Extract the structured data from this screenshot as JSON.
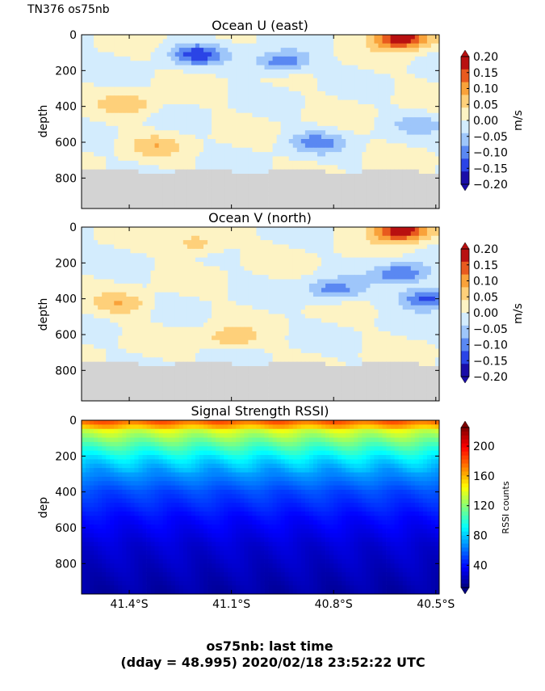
{
  "figure": {
    "corner_label": "TN376 os75nb",
    "footer_line1": "os75nb: last time",
    "footer_line2": "(dday = 48.995) 2020/02/18 23:52:22 UTC",
    "shared_x_tick_labels": [
      "41.4°S",
      "41.1°S",
      "40.8°S",
      "40.5°S"
    ]
  },
  "chart_data": [
    {
      "type": "heatmap",
      "title": "Ocean U (east)",
      "ylabel": "depth",
      "colorbar_label": "m/s",
      "x_lim": [
        41.54,
        40.49
      ],
      "x_ticks": [
        41.4,
        41.1,
        40.8,
        40.5
      ],
      "x_tick_labels": [
        "41.4°S",
        "41.1°S",
        "40.8°S",
        "40.5°S"
      ],
      "y_lim": [
        970,
        0
      ],
      "y_ticks": [
        0,
        200,
        400,
        600,
        800
      ],
      "y_tick_labels": [
        "0",
        "200",
        "400",
        "600",
        "800"
      ],
      "value_range": [
        -0.2,
        0.2
      ],
      "colorbar_ticks": [
        0.2,
        0.15,
        0.1,
        0.05,
        0.0,
        -0.05,
        -0.1,
        -0.15,
        -0.2
      ],
      "colorbar_tick_labels": [
        "0.20",
        "0.15",
        "0.10",
        "0.05",
        "0.00",
        "−0.05",
        "−0.10",
        "−0.15",
        "−0.20"
      ],
      "no_data_below_depth": 760,
      "features": [
        {
          "lat": 40.6,
          "depth": 20,
          "value": 0.2
        },
        {
          "lat": 41.2,
          "depth": 110,
          "value": -0.13
        },
        {
          "lat": 40.95,
          "depth": 150,
          "value": -0.12
        },
        {
          "lat": 41.4,
          "depth": 390,
          "value": 0.07
        },
        {
          "lat": 41.32,
          "depth": 620,
          "value": 0.06
        },
        {
          "lat": 40.85,
          "depth": 600,
          "value": -0.09
        },
        {
          "lat": 40.55,
          "depth": 500,
          "value": -0.05
        }
      ]
    },
    {
      "type": "heatmap",
      "title": "Ocean V (north)",
      "ylabel": "depth",
      "colorbar_label": "m/s",
      "x_lim": [
        41.54,
        40.49
      ],
      "x_ticks": [
        41.4,
        41.1,
        40.8,
        40.5
      ],
      "x_tick_labels": [
        "41.4°S",
        "41.1°S",
        "40.8°S",
        "40.5°S"
      ],
      "y_lim": [
        970,
        0
      ],
      "y_ticks": [
        0,
        200,
        400,
        600,
        800
      ],
      "y_tick_labels": [
        "0",
        "200",
        "400",
        "600",
        "800"
      ],
      "value_range": [
        -0.2,
        0.2
      ],
      "colorbar_ticks": [
        0.2,
        0.15,
        0.1,
        0.05,
        0.0,
        -0.05,
        -0.1,
        -0.15,
        -0.2
      ],
      "colorbar_tick_labels": [
        "0.20",
        "0.15",
        "0.10",
        "0.05",
        "0.00",
        "−0.05",
        "−0.10",
        "−0.15",
        "−0.20"
      ],
      "no_data_below_depth": 760,
      "features": [
        {
          "lat": 40.6,
          "depth": 20,
          "value": 0.2
        },
        {
          "lat": 41.2,
          "depth": 90,
          "value": 0.07
        },
        {
          "lat": 41.42,
          "depth": 430,
          "value": 0.07
        },
        {
          "lat": 41.1,
          "depth": 620,
          "value": 0.07
        },
        {
          "lat": 40.8,
          "depth": 350,
          "value": -0.1
        },
        {
          "lat": 40.6,
          "depth": 260,
          "value": -0.12
        },
        {
          "lat": 40.52,
          "depth": 400,
          "value": -0.15
        }
      ]
    },
    {
      "type": "heatmap",
      "title": "Signal Strength RSSI)",
      "ylabel": "dep",
      "colorbar_label": "RSSI counts",
      "x_lim": [
        41.54,
        40.49
      ],
      "x_ticks": [
        41.4,
        41.1,
        40.8,
        40.5
      ],
      "x_tick_labels": [
        "41.4°S",
        "41.1°S",
        "40.8°S",
        "40.5°S"
      ],
      "y_lim": [
        970,
        0
      ],
      "y_ticks": [
        0,
        200,
        400,
        600,
        800
      ],
      "y_tick_labels": [
        "0",
        "200",
        "400",
        "600",
        "800"
      ],
      "value_range": [
        10,
        225
      ],
      "colorbar_ticks": [
        200,
        160,
        120,
        80,
        40
      ],
      "colorbar_tick_labels": [
        "200",
        "160",
        "120",
        "80",
        "40"
      ],
      "profile": [
        {
          "depth": 20,
          "value": 175
        },
        {
          "depth": 60,
          "value": 135
        },
        {
          "depth": 150,
          "value": 105
        },
        {
          "depth": 220,
          "value": 85
        },
        {
          "depth": 300,
          "value": 68
        },
        {
          "depth": 400,
          "value": 52
        },
        {
          "depth": 550,
          "value": 38
        },
        {
          "depth": 700,
          "value": 28
        },
        {
          "depth": 970,
          "value": 18
        }
      ]
    }
  ],
  "colors": {
    "no_data": "#d3d3d3",
    "diverging_scale": [
      "#1a0da8",
      "#2a44e6",
      "#5a88f2",
      "#9ec6fa",
      "#d3ecfd",
      "#fdf3c4",
      "#fed07a",
      "#f9a23a",
      "#e85a1e",
      "#b81010"
    ],
    "jet_scale": [
      "#00007f",
      "#0000ff",
      "#007fff",
      "#00ffff",
      "#7fff7f",
      "#ffff00",
      "#ff7f00",
      "#ff0000",
      "#7f0000"
    ]
  }
}
